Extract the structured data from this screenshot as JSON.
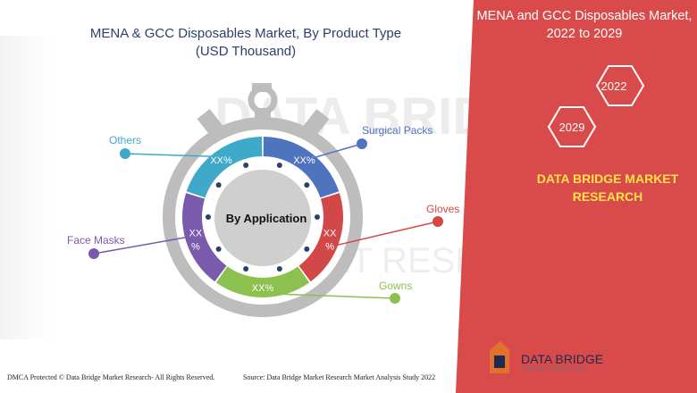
{
  "title_line1": "MENA & GCC Disposables Market, By Product Type",
  "title_line2": "(USD Thousand)",
  "right_panel": {
    "title_line1": "MENA and GCC Disposables Market,",
    "title_line2": "2022 to 2029",
    "year_start": "2022",
    "year_end": "2029",
    "brand_line1": "DATA BRIDGE MARKET",
    "brand_line2": "RESEARCH",
    "bg_color": "#d94a4a",
    "accent_color": "#ffe14a"
  },
  "watermark": {
    "line1": "DATA BRIDGE",
    "line2": "MARKET RESEARCH"
  },
  "footer": {
    "dmca": "DMCA Protected © Data Bridge Market Research- All Rights Reserved.",
    "source": "Source: Data Bridge Market Research Market Analysis Study 2022"
  },
  "logo": {
    "name": "DATA BRIDGE",
    "tagline": "MARKET RESEARCH"
  },
  "chart_data": {
    "type": "pie",
    "center_label": "By Application",
    "segments": [
      {
        "name": "Surgical Packs",
        "value_label": "XX%",
        "share": 0.2,
        "color": "#4f74bf"
      },
      {
        "name": "Gloves",
        "value_label": "XX%",
        "share": 0.2,
        "color": "#d24848"
      },
      {
        "name": "Gowns",
        "value_label": "XX%",
        "share": 0.2,
        "color": "#8cc04f"
      },
      {
        "name": "Face Masks",
        "value_label": "XX%",
        "share": 0.2,
        "color": "#7a5aab"
      },
      {
        "name": "Others",
        "value_label": "XX%",
        "share": 0.2,
        "color": "#3fa9c9"
      }
    ]
  }
}
